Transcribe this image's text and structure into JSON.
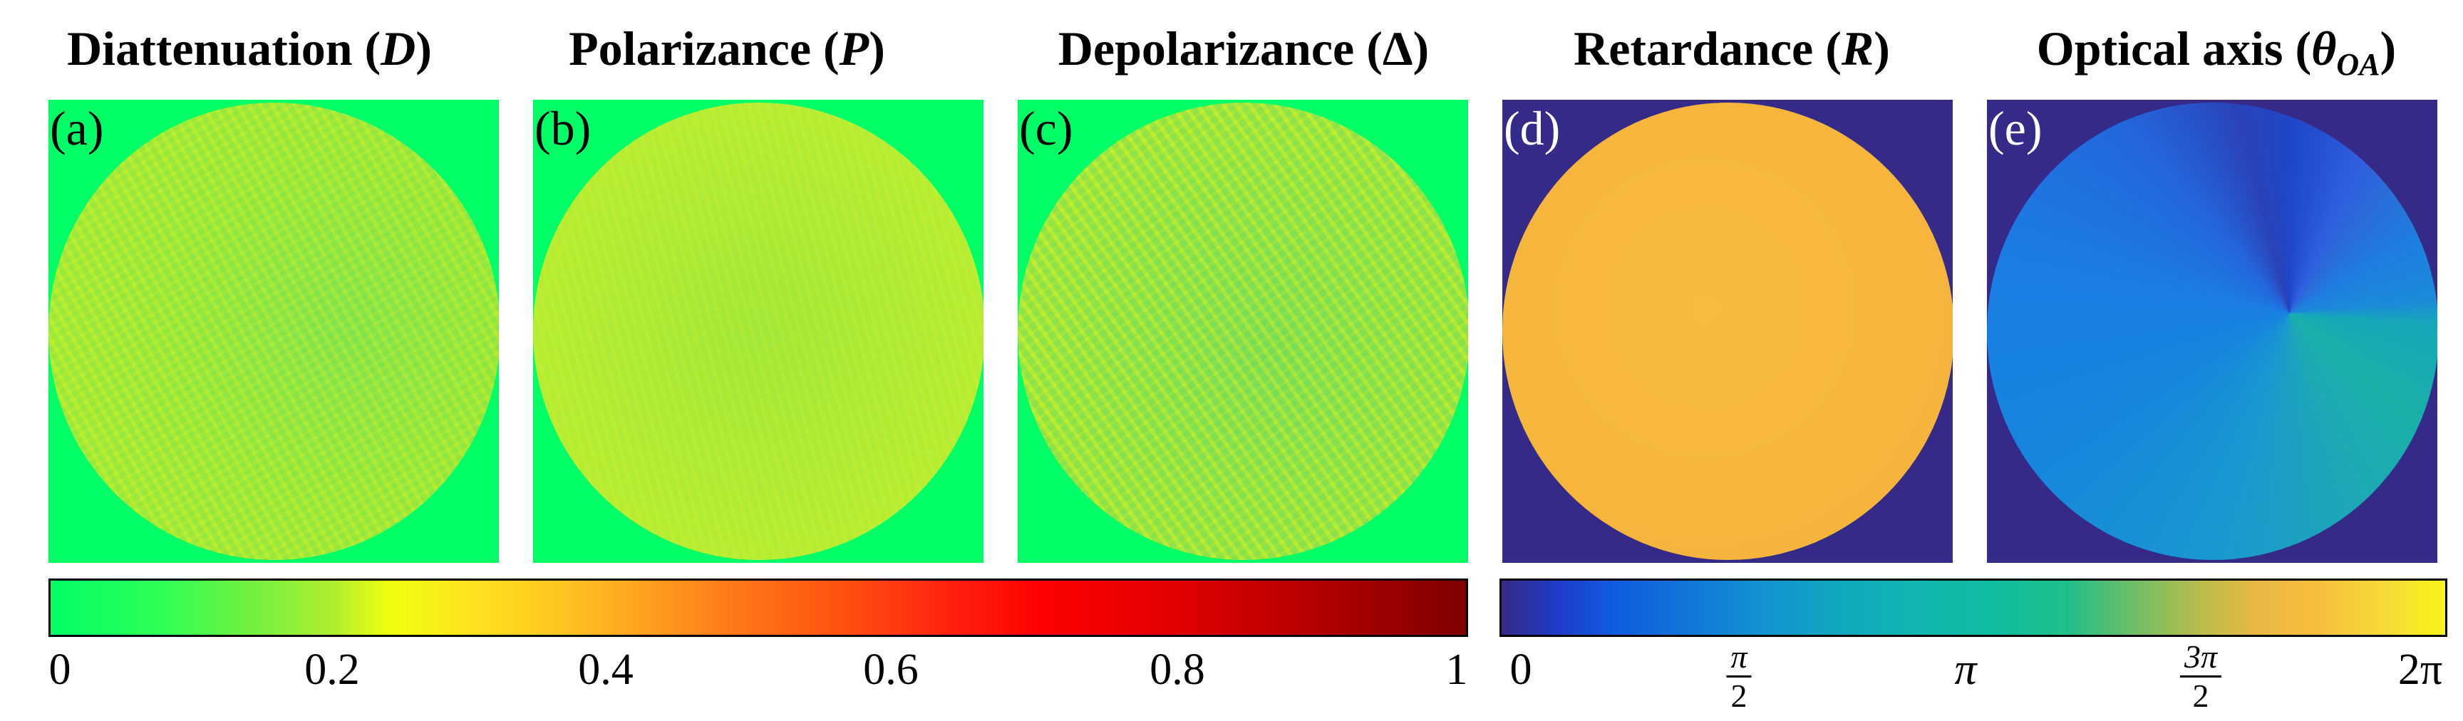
{
  "titles": {
    "a": {
      "text": "Diattenuation (",
      "sym": "D",
      "close": ")"
    },
    "b": {
      "text": "Polarizance (",
      "sym": "P",
      "close": ")"
    },
    "c": {
      "text": "Depolarizance (",
      "sym": "Δ",
      "close": ")"
    },
    "d": {
      "text": "Retardance (",
      "sym": "R",
      "close": ")"
    },
    "e": {
      "text": "Optical axis (",
      "sym": "θ",
      "sub": "OA",
      "close": ")"
    }
  },
  "panels": {
    "a": {
      "label": "(a)"
    },
    "b": {
      "label": "(b)"
    },
    "c": {
      "label": "(c)"
    },
    "d": {
      "label": "(d)"
    },
    "e": {
      "label": "(e)"
    }
  },
  "colors": {
    "panel_bg_green": "#00ff66",
    "panel_bg_navy": "#352a87",
    "disk_a": "#a6ea3a",
    "disk_b": "#b2ec36",
    "disk_c": "#a4e63e",
    "disk_d": "#f6b63c"
  },
  "colorbar_left": {
    "ticks": [
      "0",
      "0.2",
      "0.4",
      "0.6",
      "0.8",
      "1"
    ],
    "tick_values": [
      0,
      0.2,
      0.4,
      0.6,
      0.8,
      1
    ]
  },
  "colorbar_right": {
    "tick_zero": "0",
    "tick_half_num": "π",
    "tick_half_den": "2",
    "tick_pi": "π",
    "tick_3half_num": "3π",
    "tick_3half_den": "2",
    "tick_2pi": "2π"
  }
}
